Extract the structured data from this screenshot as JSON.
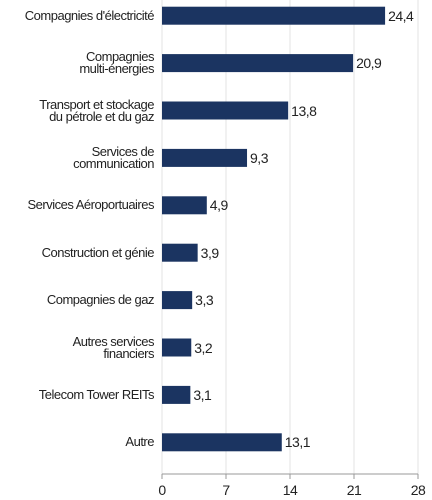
{
  "chart_data": {
    "type": "barh",
    "categories": [
      "Compagnies d'électricité",
      "Compagnies\nmulti-énergies",
      "Transport et stockage\ndu pétrole et du gaz",
      "Services de\ncommunication",
      "Services Aéroportuaires",
      "Construction et génie",
      "Compagnies de gaz",
      "Autres services\nfinanciers",
      "Telecom Tower REITs",
      "Autre"
    ],
    "values": [
      24.4,
      20.9,
      13.8,
      9.3,
      4.9,
      3.9,
      3.3,
      3.2,
      3.1,
      13.1
    ],
    "value_labels": [
      "24,4",
      "20,9",
      "13,8",
      "9,3",
      "4,9",
      "3,9",
      "3,3",
      "3,2",
      "3,1",
      "13,1"
    ],
    "color": "#1b3461",
    "xlim": [
      0,
      28
    ],
    "xticks": [
      0,
      7,
      14,
      21,
      28
    ],
    "grid": true
  }
}
